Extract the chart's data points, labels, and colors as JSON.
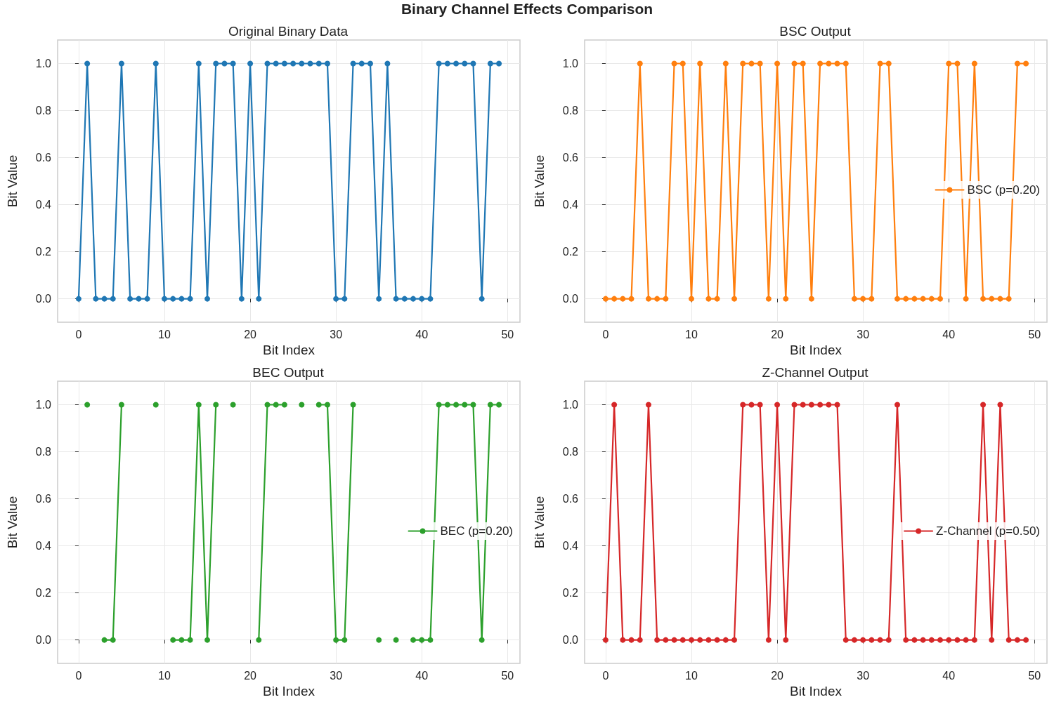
{
  "chart_data": [
    {
      "type": "line",
      "title": "Original Binary Data",
      "xlabel": "Bit Index",
      "ylabel": "Bit Value",
      "annotations": [
        "Binary Channel Effects Comparison"
      ],
      "x": [
        0,
        1,
        2,
        3,
        4,
        5,
        6,
        7,
        8,
        9,
        10,
        11,
        12,
        13,
        14,
        15,
        16,
        17,
        18,
        19,
        20,
        21,
        22,
        23,
        24,
        25,
        26,
        27,
        28,
        29,
        30,
        31,
        32,
        33,
        34,
        35,
        36,
        37,
        38,
        39,
        40,
        41,
        42,
        43,
        44,
        45,
        46,
        47,
        48,
        49
      ],
      "series": [
        {
          "color": "#1f77b4",
          "values": [
            0,
            1,
            0,
            0,
            0,
            1,
            0,
            0,
            0,
            1,
            0,
            0,
            0,
            0,
            1,
            0,
            1,
            1,
            1,
            0,
            1,
            0,
            1,
            1,
            1,
            1,
            1,
            1,
            1,
            1,
            0,
            0,
            1,
            1,
            1,
            0,
            1,
            0,
            0,
            0,
            0,
            0,
            1,
            1,
            1,
            1,
            1,
            0,
            1,
            1
          ]
        }
      ],
      "xlim": [
        -2.45,
        51.45
      ],
      "xticks": [
        0,
        10,
        20,
        30,
        40,
        50
      ],
      "ylim": [
        -0.1,
        1.1
      ],
      "yticks": [
        {
          "value": 0,
          "label": "0.0"
        },
        {
          "value": 0.2,
          "label": "0.2"
        },
        {
          "value": 0.4,
          "label": "0.4"
        },
        {
          "value": 0.6,
          "label": "0.6"
        },
        {
          "value": 0.8,
          "label": "0.8"
        },
        {
          "value": 1,
          "label": "1.0"
        }
      ],
      "grid": true,
      "marker": "circle",
      "line_style": "solid"
    },
    {
      "type": "line",
      "title": "BSC Output",
      "xlabel": "Bit Index",
      "ylabel": "Bit Value",
      "x": [
        0,
        1,
        2,
        3,
        4,
        5,
        6,
        7,
        8,
        9,
        10,
        11,
        12,
        13,
        14,
        15,
        16,
        17,
        18,
        19,
        20,
        21,
        22,
        23,
        24,
        25,
        26,
        27,
        28,
        29,
        30,
        31,
        32,
        33,
        34,
        35,
        36,
        37,
        38,
        39,
        40,
        41,
        42,
        43,
        44,
        45,
        46,
        47,
        48,
        49
      ],
      "series": [
        {
          "name": "BSC (p=0.20)",
          "color": "#ff7f0e",
          "values": [
            0,
            0,
            0,
            0,
            1,
            0,
            0,
            0,
            1,
            1,
            0,
            1,
            0,
            0,
            1,
            0,
            1,
            1,
            1,
            0,
            1,
            0,
            1,
            1,
            0,
            1,
            1,
            1,
            1,
            0,
            0,
            0,
            1,
            1,
            0,
            0,
            0,
            0,
            0,
            0,
            1,
            1,
            0,
            1,
            0,
            0,
            0,
            0,
            1,
            1
          ]
        }
      ],
      "xlim": [
        -2.45,
        51.45
      ],
      "xticks": [
        0,
        10,
        20,
        30,
        40,
        50
      ],
      "ylim": [
        -0.1,
        1.1
      ],
      "yticks": [
        {
          "value": 0,
          "label": "0.0"
        },
        {
          "value": 0.2,
          "label": "0.2"
        },
        {
          "value": 0.4,
          "label": "0.4"
        },
        {
          "value": 0.6,
          "label": "0.6"
        },
        {
          "value": 0.8,
          "label": "0.8"
        },
        {
          "value": 1,
          "label": "1.0"
        }
      ],
      "grid": true,
      "legend": "right",
      "marker": "circle",
      "line_style": "solid"
    },
    {
      "type": "line",
      "title": "BEC Output",
      "xlabel": "Bit Index",
      "ylabel": "Bit Value",
      "series": [
        {
          "name": "BEC (p=0.20)",
          "color": "#2ca02c",
          "x": [
            null,
            1,
            null,
            3,
            4,
            5,
            null,
            null,
            null,
            9,
            null,
            11,
            12,
            13,
            14,
            15,
            16,
            null,
            18,
            null,
            null,
            21,
            22,
            23,
            24,
            null,
            26,
            null,
            28,
            29,
            30,
            31,
            32,
            null,
            null,
            35,
            null,
            37,
            null,
            39,
            40,
            41,
            42,
            43,
            44,
            45,
            46,
            47,
            48,
            49
          ],
          "values": [
            null,
            1,
            null,
            0,
            0,
            1,
            null,
            null,
            null,
            1,
            null,
            0,
            0,
            0,
            1,
            0,
            1,
            null,
            1,
            null,
            null,
            0,
            1,
            1,
            1,
            null,
            1,
            null,
            1,
            1,
            0,
            0,
            1,
            null,
            null,
            0,
            null,
            0,
            null,
            0,
            0,
            0,
            1,
            1,
            1,
            1,
            1,
            0,
            1,
            1
          ]
        }
      ],
      "xlim": [
        -2.45,
        51.45
      ],
      "xticks": [
        0,
        10,
        20,
        30,
        40,
        50
      ],
      "ylim": [
        -0.1,
        1.1
      ],
      "yticks": [
        {
          "value": 0,
          "label": "0.0"
        },
        {
          "value": 0.2,
          "label": "0.2"
        },
        {
          "value": 0.4,
          "label": "0.4"
        },
        {
          "value": 0.6,
          "label": "0.6"
        },
        {
          "value": 0.8,
          "label": "0.8"
        },
        {
          "value": 1,
          "label": "1.0"
        }
      ],
      "grid": true,
      "legend": "right",
      "marker": "circle",
      "line_style": "solid"
    },
    {
      "type": "line",
      "title": "Z-Channel Output",
      "xlabel": "Bit Index",
      "ylabel": "Bit Value",
      "x": [
        0,
        1,
        2,
        3,
        4,
        5,
        6,
        7,
        8,
        9,
        10,
        11,
        12,
        13,
        14,
        15,
        16,
        17,
        18,
        19,
        20,
        21,
        22,
        23,
        24,
        25,
        26,
        27,
        28,
        29,
        30,
        31,
        32,
        33,
        34,
        35,
        36,
        37,
        38,
        39,
        40,
        41,
        42,
        43,
        44,
        45,
        46,
        47,
        48,
        49
      ],
      "series": [
        {
          "name": "Z-Channel (p=0.50)",
          "color": "#d62728",
          "values": [
            0,
            1,
            0,
            0,
            0,
            1,
            0,
            0,
            0,
            0,
            0,
            0,
            0,
            0,
            0,
            0,
            1,
            1,
            1,
            0,
            1,
            0,
            1,
            1,
            1,
            1,
            1,
            1,
            0,
            0,
            0,
            0,
            0,
            0,
            1,
            0,
            0,
            0,
            0,
            0,
            0,
            0,
            0,
            0,
            1,
            0,
            1,
            0,
            0,
            0
          ]
        }
      ],
      "xlim": [
        -2.45,
        51.45
      ],
      "xticks": [
        0,
        10,
        20,
        30,
        40,
        50
      ],
      "ylim": [
        -0.1,
        1.1
      ],
      "yticks": [
        {
          "value": 0,
          "label": "0.0"
        },
        {
          "value": 0.2,
          "label": "0.2"
        },
        {
          "value": 0.4,
          "label": "0.4"
        },
        {
          "value": 0.6,
          "label": "0.6"
        },
        {
          "value": 0.8,
          "label": "0.8"
        },
        {
          "value": 1,
          "label": "1.0"
        }
      ],
      "grid": true,
      "legend": "right",
      "marker": "circle",
      "line_style": "solid"
    }
  ]
}
